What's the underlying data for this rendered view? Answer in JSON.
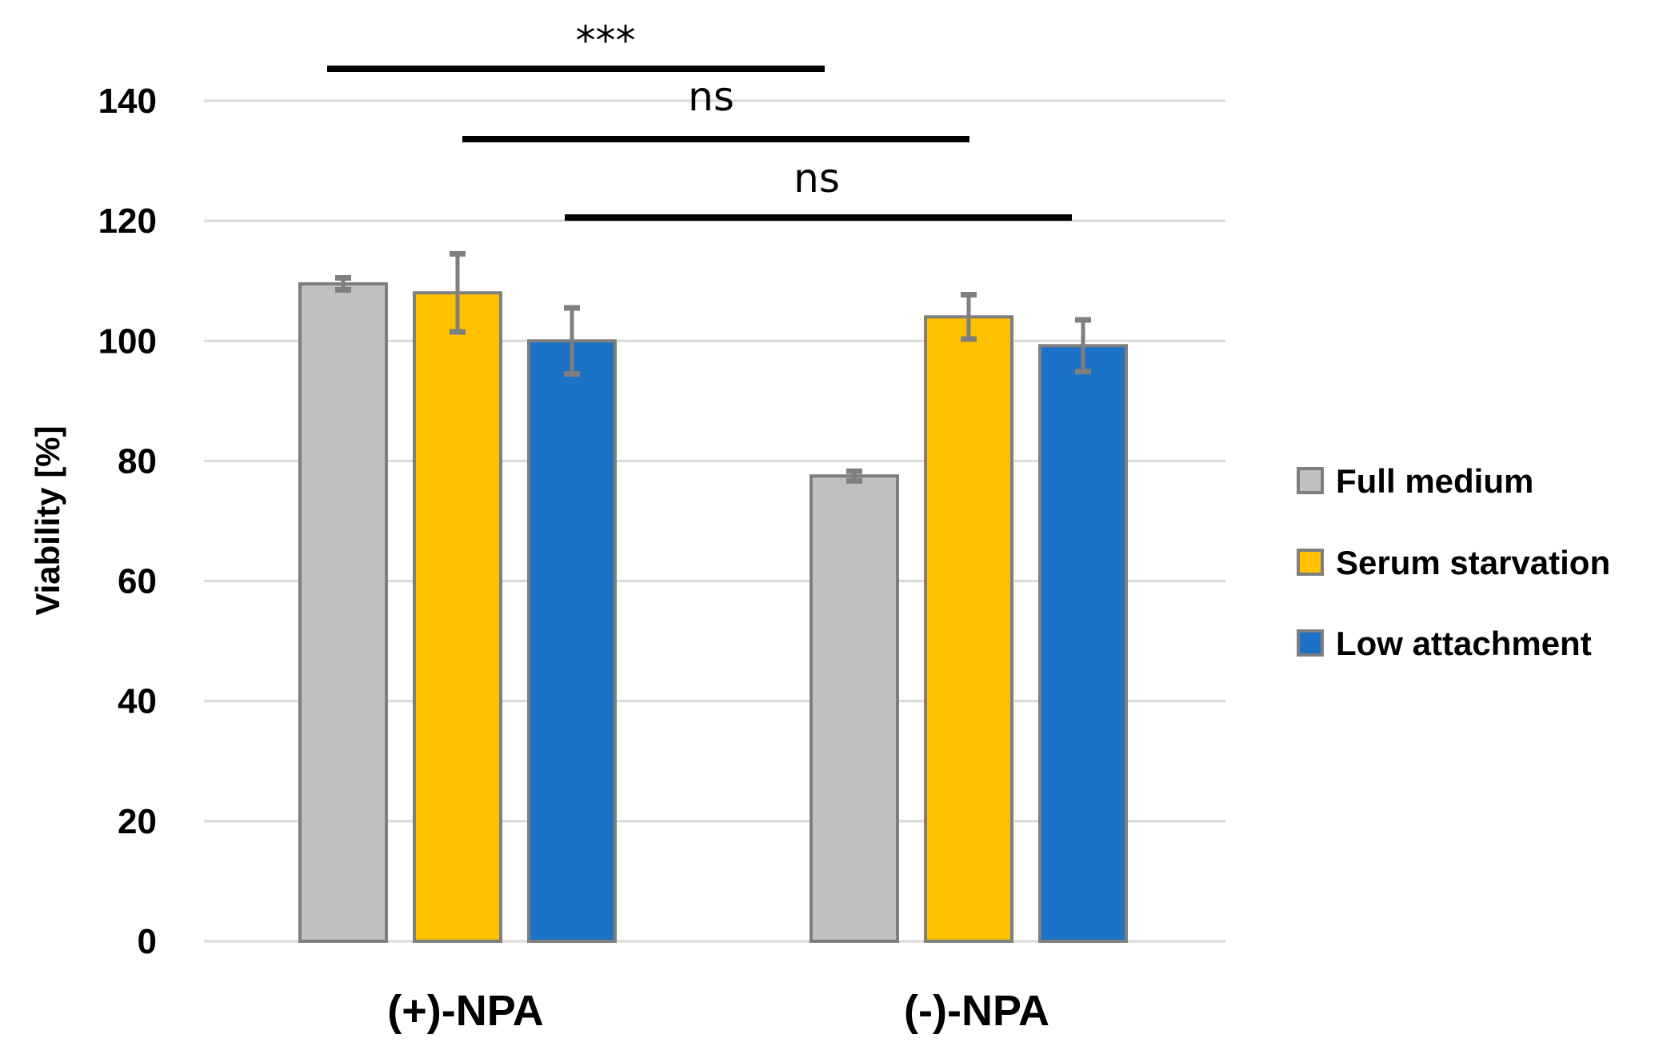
{
  "chart_data": {
    "type": "bar",
    "title": "",
    "xlabel": "",
    "ylabel": "Viability  [%]",
    "ylim": [
      0,
      140
    ],
    "yticks": [
      0,
      20,
      40,
      60,
      80,
      100,
      120,
      140
    ],
    "grid": true,
    "legend_position": "right",
    "categories": [
      "(+)-NPA",
      "(-)-NPA"
    ],
    "series": [
      {
        "name": "Full medium",
        "color": "#c0c0c0",
        "values": [
          109.5,
          77.5
        ],
        "errors": [
          1.0,
          0.8
        ]
      },
      {
        "name": "Serum starvation",
        "color": "#ffc000",
        "values": [
          108.0,
          104.0
        ],
        "errors": [
          6.5,
          3.7
        ]
      },
      {
        "name": "Low attachment",
        "color": "#1b72c7",
        "values": [
          100.0,
          99.2
        ],
        "errors": [
          5.5,
          4.3
        ]
      }
    ],
    "bar_outline_color": "#7f7f7f",
    "error_bar_color": "#7f7f7f",
    "significance": [
      {
        "label": "***",
        "from": {
          "category": 0,
          "series": 0
        },
        "to": {
          "category": 1,
          "series": 0
        },
        "y": 145
      },
      {
        "label": "ns",
        "from": {
          "category": 0,
          "series": 1
        },
        "to": {
          "category": 1,
          "series": 1
        },
        "y": 133
      },
      {
        "label": "ns",
        "from": {
          "category": 0,
          "series": 2
        },
        "to": {
          "category": 1,
          "series": 2
        },
        "y": 120
      }
    ]
  }
}
